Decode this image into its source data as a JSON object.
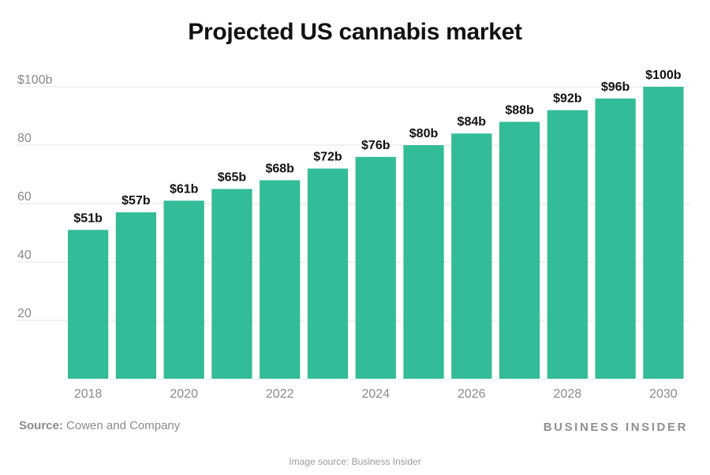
{
  "chart_data": {
    "type": "bar",
    "title": "Projected US cannabis market",
    "categories": [
      "2018",
      "2019",
      "2020",
      "2021",
      "2022",
      "2023",
      "2024",
      "2025",
      "2026",
      "2027",
      "2028",
      "2029",
      "2030"
    ],
    "values": [
      51,
      57,
      61,
      65,
      68,
      72,
      76,
      80,
      84,
      88,
      92,
      96,
      100
    ],
    "data_labels": [
      "$51b",
      "$57b",
      "$61b",
      "$65b",
      "$68b",
      "$72b",
      "$76b",
      "$80b",
      "$84b",
      "$88b",
      "$92b",
      "$96b",
      "$100b"
    ],
    "x_tick_labels": [
      "2018",
      "",
      "2020",
      "",
      "2022",
      "",
      "2024",
      "",
      "2026",
      "",
      "2028",
      "",
      "2030"
    ],
    "y_ticks": [
      20,
      40,
      60,
      80,
      100
    ],
    "y_tick_labels": [
      "20",
      "40",
      "60",
      "80",
      "$100b"
    ],
    "ylim": [
      0,
      100
    ],
    "xlabel": "",
    "ylabel": "",
    "grid": true,
    "bar_color": "#33bc98",
    "gridline_color": "#e3e3e3",
    "label_color": "#111111",
    "tick_color": "#8a8a8a"
  },
  "footer": {
    "source_label": "Source:",
    "source_text": " Cowen and Company",
    "brand": "BUSINESS INSIDER"
  },
  "caption": "Image source: Business Insider"
}
